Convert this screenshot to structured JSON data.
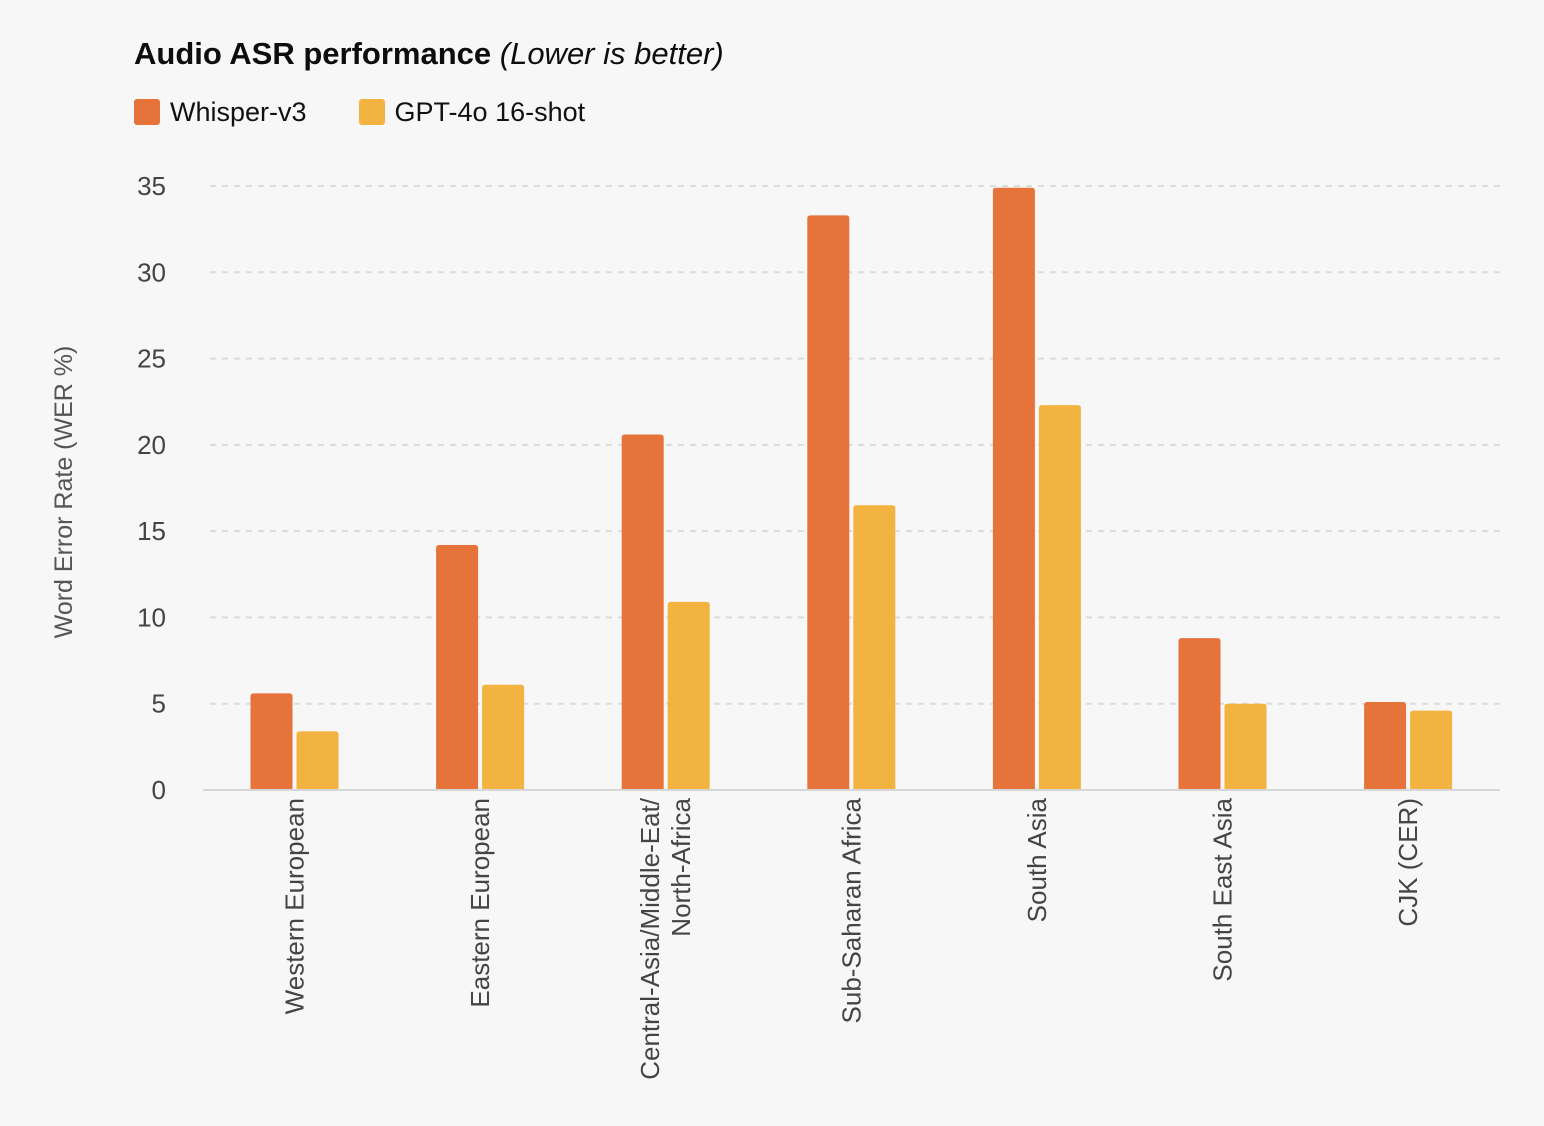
{
  "chart_data": {
    "type": "bar",
    "title": "Audio ASR performance",
    "subtitle": "(Lower is better)",
    "xlabel": "",
    "ylabel": "Word Error Rate (WER %)",
    "ylim": [
      0,
      35
    ],
    "yticks": [
      0,
      5,
      10,
      15,
      20,
      25,
      30,
      35
    ],
    "grid": true,
    "legend_position": "top-left",
    "categories": [
      [
        "Western European"
      ],
      [
        "Eastern European"
      ],
      [
        "Central-Asia/Middle-Eat/",
        "North-Africa"
      ],
      [
        "Sub-Saharan Africa"
      ],
      [
        "South Asia"
      ],
      [
        "South East Asia"
      ],
      [
        "CJK (CER)"
      ]
    ],
    "series": [
      {
        "name": "Whisper-v3",
        "color": "#e6733a",
        "values": [
          5.6,
          14.2,
          20.6,
          33.3,
          34.9,
          8.8,
          5.1
        ]
      },
      {
        "name": "GPT-4o 16-shot",
        "color": "#f3b341",
        "values": [
          3.4,
          6.1,
          10.9,
          16.5,
          22.3,
          5.0,
          4.6
        ]
      }
    ]
  }
}
